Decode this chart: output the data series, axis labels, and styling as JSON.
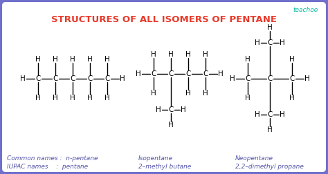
{
  "title": "STRUCTURES OF ALL ISOMERS OF PENTANE",
  "title_color": "#e8392a",
  "bg_color": "#7070cc",
  "inner_bg": "#ffffff",
  "border_color": "#7070cc",
  "text_color": "#1a1a1a",
  "label_color": "#5555aa",
  "teachoo_color": "#00b8a0",
  "font_size_title": 9.5,
  "watermark": "teachoo",
  "structures": [
    {
      "name": "n-pentane",
      "common": "Common names :  n-pentane",
      "iupac": "IUPAC names    :  pentane"
    },
    {
      "name": "isopentane",
      "common": "Isopentane",
      "iupac": "2–methyl butane"
    },
    {
      "name": "neopentane",
      "common": "Neopentane",
      "iupac": "2,2–dimethyl propane"
    }
  ]
}
